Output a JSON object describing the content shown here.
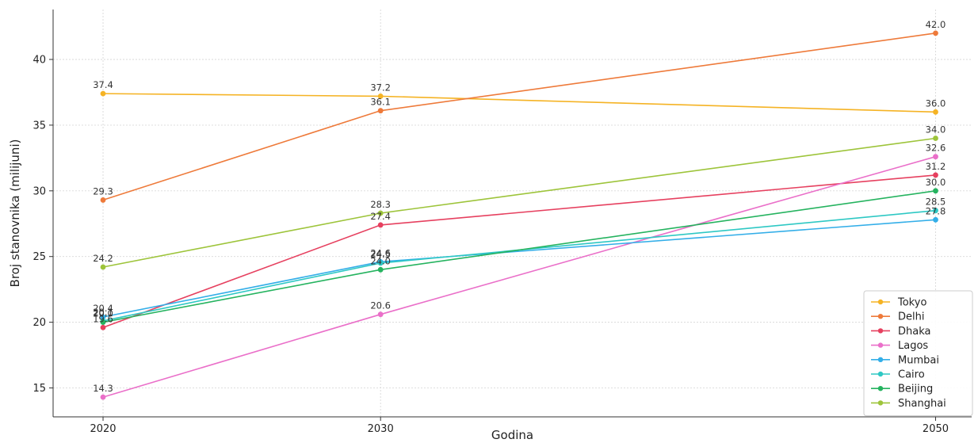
{
  "chart_data": {
    "type": "line",
    "xlabel": "Godina",
    "ylabel": "Broj stanovnika (milijuni)",
    "x": [
      2020,
      2030,
      2050
    ],
    "x_tick_labels": [
      "2020",
      "2030",
      "2050"
    ],
    "y_ticks": [
      15,
      20,
      25,
      30,
      35,
      40
    ],
    "ylim": [
      12.8,
      43.8
    ],
    "xlim": [
      2018.2,
      2051.3
    ],
    "grid": true,
    "legend_position": "bottom-right",
    "series": [
      {
        "name": "Tokyo",
        "color": "#f5b324",
        "values": [
          37.4,
          37.2,
          36.0
        ],
        "labels": [
          "37.4",
          "37.2",
          "36.0"
        ]
      },
      {
        "name": "Delhi",
        "color": "#ee7a3a",
        "values": [
          29.3,
          36.1,
          42.0
        ],
        "labels": [
          "29.3",
          "36.1",
          "42.0"
        ]
      },
      {
        "name": "Dhaka",
        "color": "#e6405f",
        "values": [
          19.6,
          27.4,
          31.2
        ],
        "labels": [
          "19.6",
          "27.4",
          "31.2"
        ]
      },
      {
        "name": "Lagos",
        "color": "#ea6fc9",
        "values": [
          14.3,
          20.6,
          32.6
        ],
        "labels": [
          "14.3",
          "20.6",
          "32.6"
        ]
      },
      {
        "name": "Mumbai",
        "color": "#33aee8",
        "values": [
          20.4,
          24.6,
          27.8
        ],
        "labels": [
          "20.4",
          "24.6",
          "27.8"
        ]
      },
      {
        "name": "Cairo",
        "color": "#2ec8c4",
        "values": [
          20.1,
          24.5,
          28.5
        ],
        "labels": [
          "20.1",
          "24.5",
          "28.5"
        ]
      },
      {
        "name": "Beijing",
        "color": "#25b35f",
        "values": [
          20.0,
          24.0,
          30.0
        ],
        "labels": [
          "20.0",
          "24.0",
          "30.0"
        ]
      },
      {
        "name": "Shanghai",
        "color": "#9dc43a",
        "values": [
          24.2,
          28.3,
          34.0
        ],
        "labels": [
          "24.2",
          "28.3",
          "34.0"
        ]
      }
    ]
  }
}
